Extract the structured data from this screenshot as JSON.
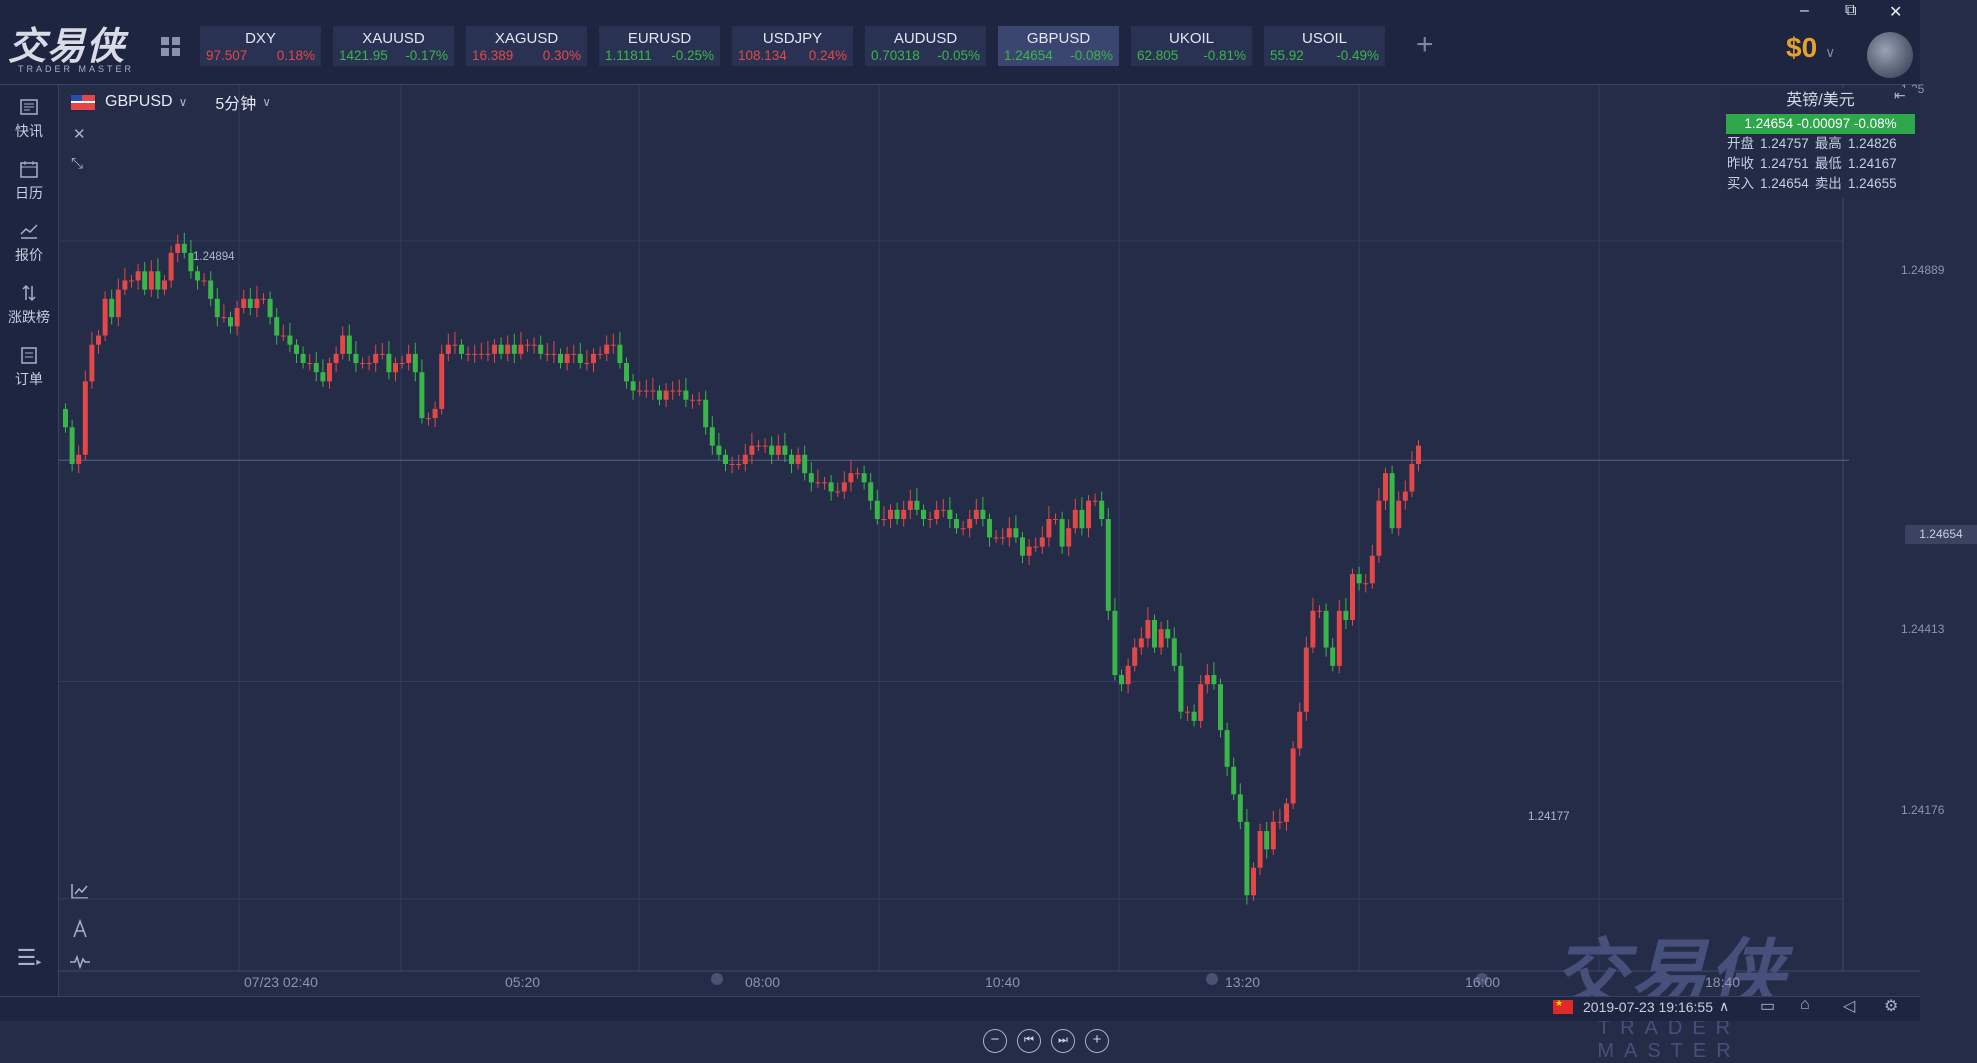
{
  "app": {
    "logo_text": "交易侠",
    "logo_sub": "TRADER MASTER"
  },
  "window_controls": {
    "minimize": "–",
    "restore": "⧉",
    "close": "✕"
  },
  "tickers": [
    {
      "symbol": "DXY",
      "price": "97.507",
      "change": "0.18%",
      "dir": "up"
    },
    {
      "symbol": "XAUUSD",
      "price": "1421.95",
      "change": "-0.17%",
      "dir": "down"
    },
    {
      "symbol": "XAGUSD",
      "price": "16.389",
      "change": "0.30%",
      "dir": "up"
    },
    {
      "symbol": "EURUSD",
      "price": "1.11811",
      "change": "-0.25%",
      "dir": "down"
    },
    {
      "symbol": "USDJPY",
      "price": "108.134",
      "change": "0.24%",
      "dir": "up"
    },
    {
      "symbol": "AUDUSD",
      "price": "0.70318",
      "change": "-0.05%",
      "dir": "down"
    },
    {
      "symbol": "GBPUSD",
      "price": "1.24654",
      "change": "-0.08%",
      "dir": "down",
      "active": true
    },
    {
      "symbol": "UKOIL",
      "price": "62.805",
      "change": "-0.81%",
      "dir": "down"
    },
    {
      "symbol": "USOIL",
      "price": "55.92",
      "change": "-0.49%",
      "dir": "down"
    }
  ],
  "add_label": "+",
  "balance": "$0",
  "left_nav": [
    {
      "label": "快讯",
      "icon": "news-icon"
    },
    {
      "label": "日历",
      "icon": "calendar-icon"
    },
    {
      "label": "报价",
      "icon": "quote-chart-icon"
    },
    {
      "label": "涨跌榜",
      "icon": "rank-arrows-icon"
    },
    {
      "label": "订单",
      "icon": "order-icon"
    }
  ],
  "chart_header": {
    "symbol": "GBPUSD",
    "interval": "5分钟"
  },
  "info_panel": {
    "title": "英镑/美元",
    "price_line": "1.24654  -0.00097  -0.08%",
    "rows": [
      [
        "开盘",
        "1.24757",
        "最高",
        "1.24826"
      ],
      [
        "昨收",
        "1.24751",
        "最低",
        "1.24167"
      ],
      [
        "买入",
        "1.24654",
        "卖出",
        "1.24655"
      ]
    ]
  },
  "current_price_tag": "1.24654",
  "high_annotation": "1.24894",
  "low_annotation": "1.24177",
  "nav_controls": [
    "−",
    "⏮",
    "⏭",
    "+"
  ],
  "status": {
    "datetime": "2019-07-23 19:16:55"
  },
  "chart_data": {
    "type": "candlestick",
    "y_ticks": [
      "1.25",
      "1.24889",
      "1.24413",
      "1.24176"
    ],
    "x_ticks": [
      "07/23 02:40",
      "05:20",
      "08:00",
      "10:40",
      "13:20",
      "16:00",
      "18:40"
    ],
    "ylim": [
      1.24104,
      1.25063
    ],
    "num_candles": 209,
    "closes": [
      1.2469,
      1.2465,
      1.2466,
      1.2474,
      1.2478,
      1.2479,
      1.2483,
      1.2481,
      1.2484,
      1.2485,
      1.2485,
      1.2486,
      1.2484,
      1.2486,
      1.2484,
      1.2485,
      1.2488,
      1.2489,
      1.2488,
      1.2486,
      1.2485,
      1.2485,
      1.2483,
      1.2481,
      1.2481,
      1.248,
      1.2482,
      1.2483,
      1.2482,
      1.2483,
      1.2483,
      1.2481,
      1.2479,
      1.2479,
      1.2478,
      1.2477,
      1.2476,
      1.2476,
      1.2475,
      1.2474,
      1.2476,
      1.2477,
      1.2479,
      1.2477,
      1.2476,
      1.2476,
      1.2476,
      1.2477,
      1.2477,
      1.2475,
      1.2476,
      1.2476,
      1.2477,
      1.2475,
      1.247,
      1.247,
      1.2471,
      1.2477,
      1.2478,
      1.2478,
      1.2477,
      1.2477,
      1.2477,
      1.2477,
      1.2477,
      1.2478,
      1.2477,
      1.2478,
      1.2477,
      1.2478,
      1.2478,
      1.2478,
      1.2477,
      1.2477,
      1.2477,
      1.2476,
      1.2477,
      1.2477,
      1.2476,
      1.2476,
      1.2477,
      1.2477,
      1.2478,
      1.2478,
      1.2476,
      1.2474,
      1.2473,
      1.2473,
      1.2473,
      1.2473,
      1.2472,
      1.2473,
      1.2473,
      1.2473,
      1.2472,
      1.2472,
      1.2472,
      1.2469,
      1.2467,
      1.2466,
      1.2465,
      1.2465,
      1.2465,
      1.2466,
      1.2467,
      1.2467,
      1.2467,
      1.2466,
      1.2467,
      1.2466,
      1.2465,
      1.2466,
      1.2464,
      1.2463,
      1.2463,
      1.2463,
      1.2462,
      1.2462,
      1.2463,
      1.2464,
      1.2464,
      1.2463,
      1.2461,
      1.2459,
      1.2459,
      1.246,
      1.2459,
      1.246,
      1.2461,
      1.246,
      1.2459,
      1.2459,
      1.246,
      1.246,
      1.2459,
      1.2458,
      1.2458,
      1.2459,
      1.246,
      1.2459,
      1.2457,
      1.2457,
      1.2457,
      1.2458,
      1.2457,
      1.2455,
      1.2456,
      1.2456,
      1.2457,
      1.2459,
      1.2459,
      1.2456,
      1.2458,
      1.246,
      1.2458,
      1.2461,
      1.2461,
      1.2459,
      1.2449,
      1.2442,
      1.2441,
      1.2443,
      1.2445,
      1.2446,
      1.2448,
      1.2445,
      1.2447,
      1.2446,
      1.2443,
      1.2438,
      1.2438,
      1.2437,
      1.2441,
      1.2442,
      1.2441,
      1.2436,
      1.2432,
      1.2429,
      1.2426,
      1.2418,
      1.2421,
      1.2425,
      1.2423,
      1.2426,
      1.2426,
      1.2428,
      1.2434,
      1.2438,
      1.2445,
      1.2449,
      1.2449,
      1.2445,
      1.2443,
      1.2449,
      1.2448,
      1.2453,
      1.2452,
      1.2452,
      1.2455,
      1.2461,
      1.2464,
      1.2458,
      1.2461,
      1.2462,
      1.2465,
      1.2467
    ]
  }
}
